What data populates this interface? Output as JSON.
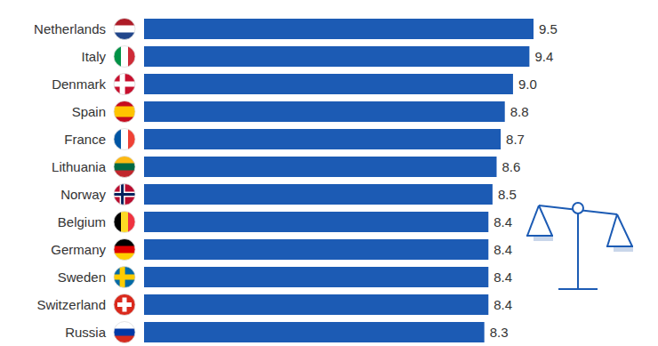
{
  "chart_data": {
    "type": "bar",
    "orientation": "horizontal",
    "categories": [
      "Netherlands",
      "Italy",
      "Denmark",
      "Spain",
      "France",
      "Lithuania",
      "Norway",
      "Belgium",
      "Germany",
      "Sweden",
      "Switzerland",
      "Russia"
    ],
    "values": [
      9.5,
      9.4,
      9.0,
      8.8,
      8.7,
      8.6,
      8.5,
      8.4,
      8.4,
      8.4,
      8.4,
      8.3
    ],
    "value_labels": [
      "9.5",
      "9.4",
      "9.0",
      "8.8",
      "8.7",
      "8.6",
      "8.5",
      "8.4",
      "8.4",
      "8.4",
      "8.4",
      "8.3"
    ],
    "color": "#1c5bb4",
    "xlim": [
      0,
      9.5
    ],
    "data_labels": true,
    "tick_labels": "y",
    "grid": false
  }
}
